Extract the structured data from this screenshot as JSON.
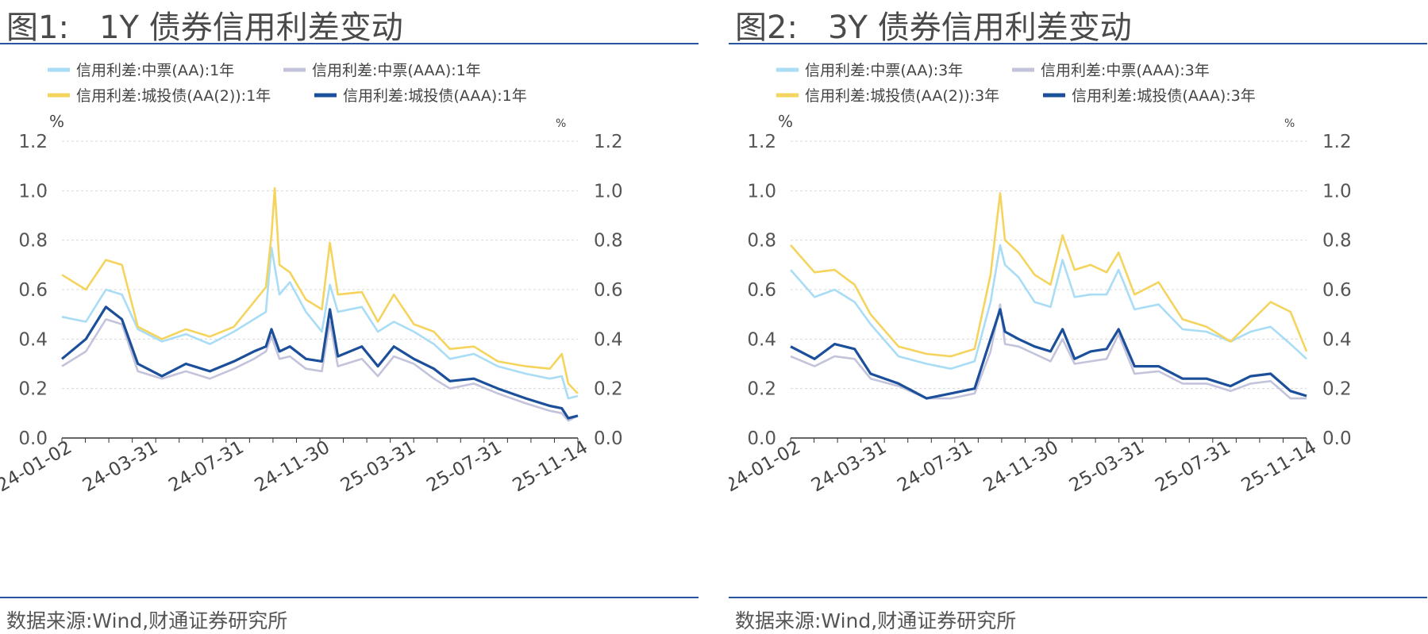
{
  "figures": [
    {
      "title_label": "图1:",
      "title_text": "1Y 债券信用利差变动",
      "source": "数据来源:Wind,财通证券研究所",
      "unit_left": "%",
      "unit_right": "%"
    },
    {
      "title_label": "图2:",
      "title_text": "3Y 债券信用利差变动",
      "source": "数据来源:Wind,财通证券研究所",
      "unit_left": "%",
      "unit_right": "%"
    }
  ],
  "colors": {
    "light_blue": "#a9dcf5",
    "grey_purple": "#c3c3db",
    "yellow": "#f5d45e",
    "dark_blue": "#1c4f9a",
    "rule": "#27559e"
  },
  "chart_data": [
    {
      "type": "line",
      "x_ticks": [
        "24-01-02",
        "24-03-31",
        "24-07-31",
        "24-11-30",
        "25-03-31",
        "25-07-31",
        "25-11-14"
      ],
      "ylim": [
        0,
        1.2
      ],
      "y_ticks": [
        "0.0",
        "0.2",
        "0.4",
        "0.6",
        "0.8",
        "1.0",
        "1.2"
      ],
      "grid": true,
      "legend_position": "top",
      "series": [
        {
          "name": "信用利差:中票(AA):1年",
          "color": "#a9dcf5",
          "points": [
            [
              0,
              0.49
            ],
            [
              30,
              0.47
            ],
            [
              55,
              0.6
            ],
            [
              75,
              0.58
            ],
            [
              95,
              0.44
            ],
            [
              125,
              0.39
            ],
            [
              155,
              0.42
            ],
            [
              185,
              0.38
            ],
            [
              215,
              0.43
            ],
            [
              240,
              0.48
            ],
            [
              255,
              0.51
            ],
            [
              262,
              0.77
            ],
            [
              272,
              0.58
            ],
            [
              285,
              0.63
            ],
            [
              305,
              0.51
            ],
            [
              325,
              0.43
            ],
            [
              335,
              0.62
            ],
            [
              345,
              0.51
            ],
            [
              375,
              0.53
            ],
            [
              395,
              0.43
            ],
            [
              415,
              0.47
            ],
            [
              440,
              0.43
            ],
            [
              465,
              0.38
            ],
            [
              485,
              0.32
            ],
            [
              515,
              0.34
            ],
            [
              545,
              0.29
            ],
            [
              580,
              0.26
            ],
            [
              610,
              0.24
            ],
            [
              625,
              0.25
            ],
            [
              633,
              0.16
            ],
            [
              645,
              0.17
            ]
          ]
        },
        {
          "name": "信用利差:中票(AAA):1年",
          "color": "#c3c3db",
          "points": [
            [
              0,
              0.29
            ],
            [
              30,
              0.35
            ],
            [
              55,
              0.48
            ],
            [
              75,
              0.46
            ],
            [
              95,
              0.27
            ],
            [
              125,
              0.24
            ],
            [
              155,
              0.27
            ],
            [
              185,
              0.24
            ],
            [
              215,
              0.28
            ],
            [
              240,
              0.32
            ],
            [
              255,
              0.35
            ],
            [
              262,
              0.41
            ],
            [
              272,
              0.32
            ],
            [
              285,
              0.33
            ],
            [
              305,
              0.28
            ],
            [
              325,
              0.27
            ],
            [
              335,
              0.47
            ],
            [
              345,
              0.29
            ],
            [
              375,
              0.32
            ],
            [
              395,
              0.25
            ],
            [
              415,
              0.33
            ],
            [
              440,
              0.3
            ],
            [
              465,
              0.24
            ],
            [
              485,
              0.2
            ],
            [
              515,
              0.22
            ],
            [
              545,
              0.18
            ],
            [
              580,
              0.14
            ],
            [
              610,
              0.11
            ],
            [
              625,
              0.1
            ],
            [
              633,
              0.07
            ],
            [
              645,
              0.09
            ]
          ]
        },
        {
          "name": "信用利差:城投债(AA(2)):1年",
          "color": "#f5d45e",
          "points": [
            [
              0,
              0.66
            ],
            [
              30,
              0.6
            ],
            [
              55,
              0.72
            ],
            [
              75,
              0.7
            ],
            [
              95,
              0.45
            ],
            [
              125,
              0.4
            ],
            [
              155,
              0.44
            ],
            [
              185,
              0.41
            ],
            [
              215,
              0.45
            ],
            [
              240,
              0.55
            ],
            [
              255,
              0.61
            ],
            [
              262,
              0.82
            ],
            [
              266,
              1.01
            ],
            [
              272,
              0.7
            ],
            [
              285,
              0.67
            ],
            [
              305,
              0.56
            ],
            [
              325,
              0.52
            ],
            [
              335,
              0.79
            ],
            [
              345,
              0.58
            ],
            [
              375,
              0.59
            ],
            [
              395,
              0.47
            ],
            [
              415,
              0.58
            ],
            [
              440,
              0.46
            ],
            [
              465,
              0.43
            ],
            [
              485,
              0.36
            ],
            [
              515,
              0.37
            ],
            [
              545,
              0.31
            ],
            [
              580,
              0.29
            ],
            [
              610,
              0.28
            ],
            [
              625,
              0.34
            ],
            [
              633,
              0.22
            ],
            [
              645,
              0.18
            ]
          ]
        },
        {
          "name": "信用利差:城投债(AAA):1年",
          "color": "#1c4f9a",
          "points": [
            [
              0,
              0.32
            ],
            [
              30,
              0.4
            ],
            [
              55,
              0.53
            ],
            [
              75,
              0.48
            ],
            [
              95,
              0.3
            ],
            [
              125,
              0.25
            ],
            [
              155,
              0.3
            ],
            [
              185,
              0.27
            ],
            [
              215,
              0.31
            ],
            [
              240,
              0.35
            ],
            [
              255,
              0.37
            ],
            [
              262,
              0.44
            ],
            [
              272,
              0.35
            ],
            [
              285,
              0.37
            ],
            [
              305,
              0.32
            ],
            [
              325,
              0.31
            ],
            [
              335,
              0.52
            ],
            [
              345,
              0.33
            ],
            [
              375,
              0.37
            ],
            [
              395,
              0.29
            ],
            [
              415,
              0.37
            ],
            [
              440,
              0.32
            ],
            [
              465,
              0.28
            ],
            [
              485,
              0.23
            ],
            [
              515,
              0.24
            ],
            [
              545,
              0.2
            ],
            [
              580,
              0.16
            ],
            [
              610,
              0.13
            ],
            [
              625,
              0.12
            ],
            [
              633,
              0.08
            ],
            [
              645,
              0.09
            ]
          ]
        }
      ]
    },
    {
      "type": "line",
      "x_ticks": [
        "24-01-02",
        "24-03-31",
        "24-07-31",
        "24-11-30",
        "25-03-31",
        "25-07-31",
        "25-11-14"
      ],
      "ylim": [
        0,
        1.2
      ],
      "y_ticks": [
        "0.0",
        "0.2",
        "0.4",
        "0.6",
        "0.8",
        "1.0",
        "1.2"
      ],
      "grid": true,
      "legend_position": "top",
      "series": [
        {
          "name": "信用利差:中票(AA):3年",
          "color": "#a9dcf5",
          "points": [
            [
              0,
              0.68
            ],
            [
              30,
              0.57
            ],
            [
              55,
              0.6
            ],
            [
              80,
              0.55
            ],
            [
              100,
              0.46
            ],
            [
              135,
              0.33
            ],
            [
              170,
              0.3
            ],
            [
              200,
              0.28
            ],
            [
              230,
              0.31
            ],
            [
              250,
              0.55
            ],
            [
              262,
              0.78
            ],
            [
              268,
              0.7
            ],
            [
              285,
              0.65
            ],
            [
              305,
              0.55
            ],
            [
              325,
              0.53
            ],
            [
              340,
              0.72
            ],
            [
              355,
              0.57
            ],
            [
              375,
              0.58
            ],
            [
              395,
              0.58
            ],
            [
              410,
              0.68
            ],
            [
              430,
              0.52
            ],
            [
              460,
              0.54
            ],
            [
              490,
              0.44
            ],
            [
              520,
              0.43
            ],
            [
              550,
              0.39
            ],
            [
              575,
              0.43
            ],
            [
              600,
              0.45
            ],
            [
              625,
              0.38
            ],
            [
              645,
              0.32
            ]
          ]
        },
        {
          "name": "信用利差:中票(AAA):3年",
          "color": "#c3c3db",
          "points": [
            [
              0,
              0.33
            ],
            [
              30,
              0.29
            ],
            [
              55,
              0.33
            ],
            [
              80,
              0.32
            ],
            [
              100,
              0.24
            ],
            [
              135,
              0.21
            ],
            [
              170,
              0.16
            ],
            [
              200,
              0.16
            ],
            [
              230,
              0.18
            ],
            [
              250,
              0.35
            ],
            [
              262,
              0.54
            ],
            [
              268,
              0.38
            ],
            [
              285,
              0.37
            ],
            [
              305,
              0.34
            ],
            [
              325,
              0.31
            ],
            [
              340,
              0.4
            ],
            [
              355,
              0.3
            ],
            [
              375,
              0.31
            ],
            [
              395,
              0.32
            ],
            [
              410,
              0.42
            ],
            [
              430,
              0.26
            ],
            [
              460,
              0.27
            ],
            [
              490,
              0.22
            ],
            [
              520,
              0.22
            ],
            [
              550,
              0.19
            ],
            [
              575,
              0.22
            ],
            [
              600,
              0.23
            ],
            [
              625,
              0.16
            ],
            [
              645,
              0.16
            ]
          ]
        },
        {
          "name": "信用利差:城投债(AA(2)):3年",
          "color": "#f5d45e",
          "points": [
            [
              0,
              0.78
            ],
            [
              30,
              0.67
            ],
            [
              55,
              0.68
            ],
            [
              80,
              0.62
            ],
            [
              100,
              0.5
            ],
            [
              135,
              0.37
            ],
            [
              170,
              0.34
            ],
            [
              200,
              0.33
            ],
            [
              230,
              0.36
            ],
            [
              250,
              0.66
            ],
            [
              262,
              0.99
            ],
            [
              268,
              0.8
            ],
            [
              285,
              0.75
            ],
            [
              305,
              0.66
            ],
            [
              325,
              0.62
            ],
            [
              340,
              0.82
            ],
            [
              355,
              0.68
            ],
            [
              375,
              0.7
            ],
            [
              395,
              0.67
            ],
            [
              410,
              0.75
            ],
            [
              430,
              0.58
            ],
            [
              460,
              0.63
            ],
            [
              490,
              0.48
            ],
            [
              520,
              0.45
            ],
            [
              550,
              0.39
            ],
            [
              575,
              0.47
            ],
            [
              600,
              0.55
            ],
            [
              625,
              0.51
            ],
            [
              645,
              0.35
            ]
          ]
        },
        {
          "name": "信用利差:城投债(AAA):3年",
          "color": "#1c4f9a",
          "points": [
            [
              0,
              0.37
            ],
            [
              30,
              0.32
            ],
            [
              55,
              0.38
            ],
            [
              80,
              0.36
            ],
            [
              100,
              0.26
            ],
            [
              135,
              0.22
            ],
            [
              170,
              0.16
            ],
            [
              200,
              0.18
            ],
            [
              230,
              0.2
            ],
            [
              250,
              0.4
            ],
            [
              262,
              0.52
            ],
            [
              268,
              0.43
            ],
            [
              285,
              0.4
            ],
            [
              305,
              0.37
            ],
            [
              325,
              0.35
            ],
            [
              340,
              0.44
            ],
            [
              355,
              0.32
            ],
            [
              375,
              0.35
            ],
            [
              395,
              0.36
            ],
            [
              410,
              0.44
            ],
            [
              430,
              0.29
            ],
            [
              460,
              0.29
            ],
            [
              490,
              0.24
            ],
            [
              520,
              0.24
            ],
            [
              550,
              0.21
            ],
            [
              575,
              0.25
            ],
            [
              600,
              0.26
            ],
            [
              625,
              0.19
            ],
            [
              645,
              0.17
            ]
          ]
        }
      ]
    }
  ]
}
